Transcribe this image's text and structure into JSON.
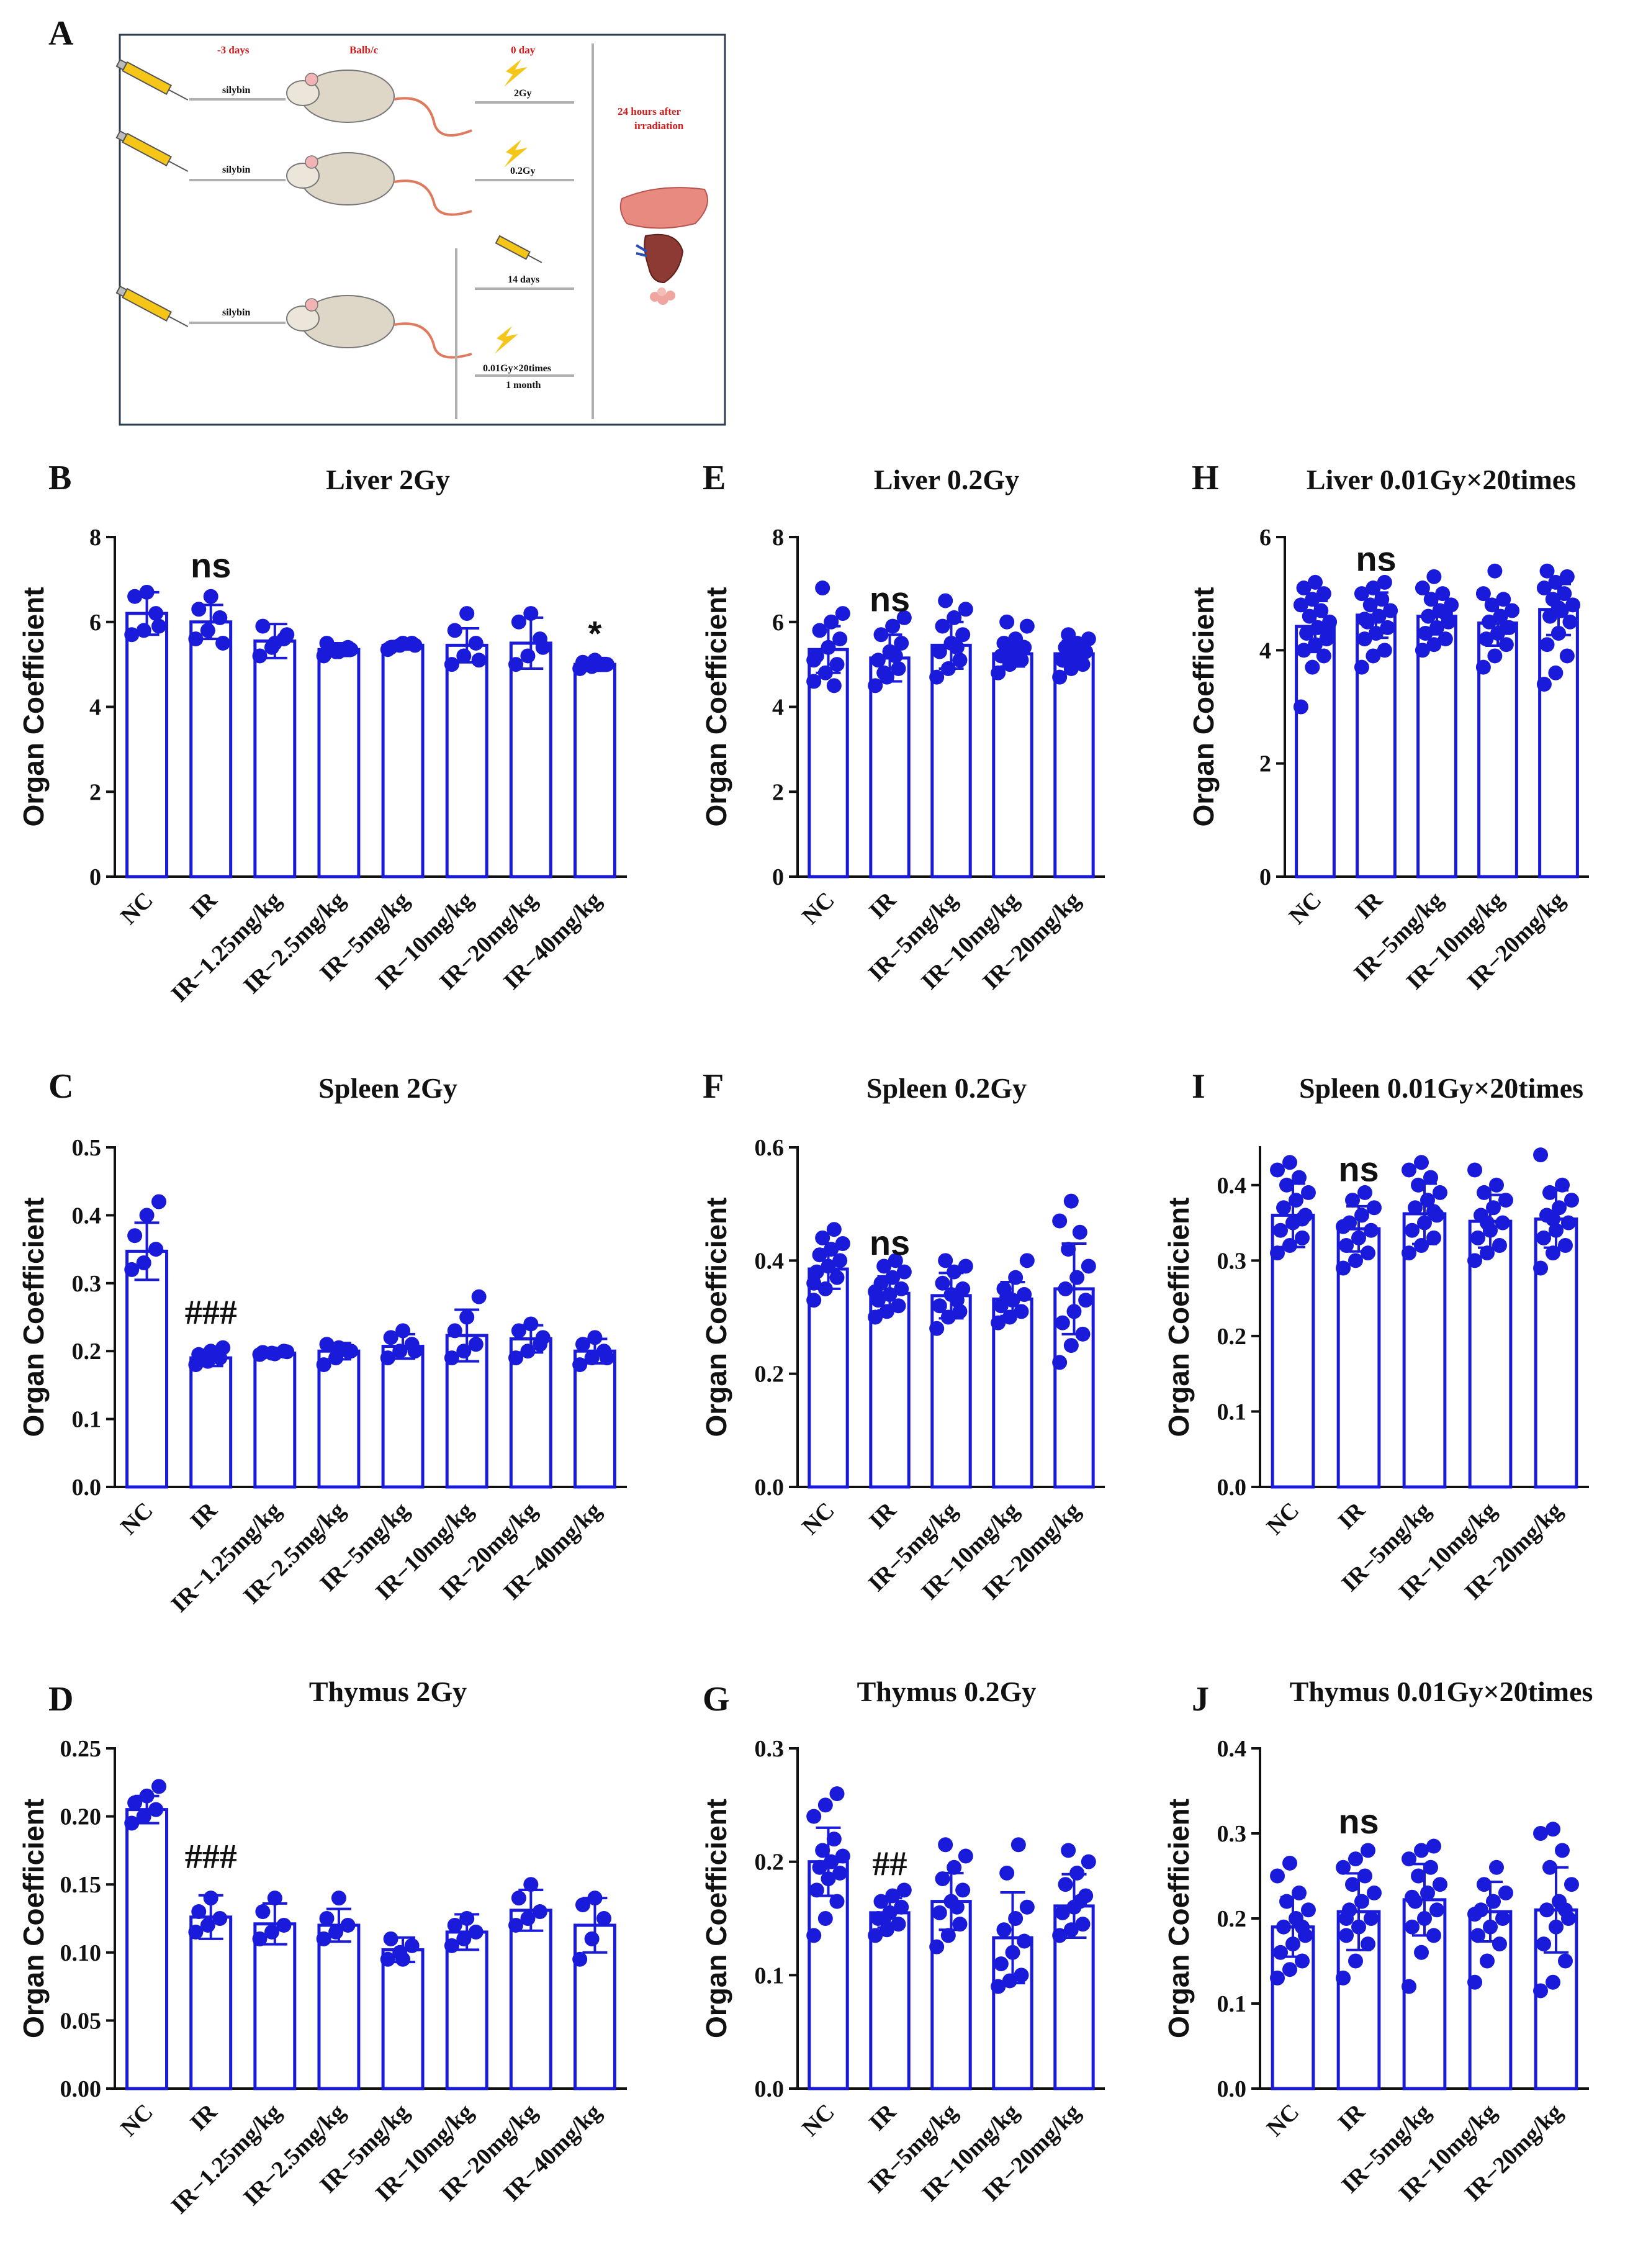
{
  "panel_a": {
    "label": "A",
    "texts": {
      "minus3days": "-3 days",
      "strain": "Balb/c",
      "day0": "0 day",
      "silybin": "silybin",
      "dose_2gy": "2Gy",
      "dose_02gy": "0.2Gy",
      "days14": "14 days",
      "dose_low": "0.01Gy×20times",
      "month": "1 month",
      "after_line1": "24 hours after",
      "after_line2": "irradiation"
    }
  },
  "colors": {
    "bar": "#1a1adb",
    "axis": "#111111",
    "red": "#d11a1a"
  },
  "chart_data": [
    {
      "id": "B",
      "label": "B",
      "type": "bar",
      "title": "Liver 2Gy",
      "ylabel": "Organ Coefficient",
      "ylim": [
        0,
        8
      ],
      "yticks": [
        "0",
        "2",
        "4",
        "6",
        "8"
      ],
      "ytick_values": [
        0,
        2,
        4,
        6,
        8
      ],
      "categories": [
        "NC",
        "IR",
        "IR−1.25mg/kg",
        "IR−2.5mg/kg",
        "IR−5mg/kg",
        "IR−10mg/kg",
        "IR−20mg/kg",
        "IR−40mg/kg"
      ],
      "values": [
        6.2,
        6.0,
        5.55,
        5.35,
        5.45,
        5.45,
        5.5,
        5.0
      ],
      "errors": [
        0.5,
        0.4,
        0.4,
        0.15,
        0.1,
        0.4,
        0.6,
        0.15
      ],
      "points": [
        [
          5.7,
          5.8,
          6.2,
          6.6,
          6.7,
          5.9
        ],
        [
          5.6,
          5.8,
          6.1,
          6.3,
          6.6,
          5.5
        ],
        [
          5.2,
          5.4,
          5.6,
          5.9,
          5.5,
          5.7
        ],
        [
          5.2,
          5.3,
          5.4,
          5.5,
          5.3,
          5.35
        ],
        [
          5.35,
          5.45,
          5.5,
          5.4,
          5.5,
          5.45
        ],
        [
          5.0,
          5.2,
          5.5,
          5.8,
          6.2,
          5.1
        ],
        [
          5.0,
          5.2,
          5.6,
          6.0,
          6.2,
          5.4
        ],
        [
          4.9,
          4.95,
          5.0,
          5.05,
          5.1,
          5.0
        ]
      ],
      "annotations": [
        {
          "text": "ns",
          "index": 1,
          "y": 7.05,
          "style": "sig"
        },
        {
          "text": "*",
          "index": 7,
          "y": 5.45,
          "style": "sig"
        }
      ]
    },
    {
      "id": "C",
      "label": "C",
      "type": "bar",
      "title": "Spleen 2Gy",
      "ylabel": "Organ Coefficient",
      "ylim": [
        0,
        0.5
      ],
      "yticks": [
        "0.0",
        "0.1",
        "0.2",
        "0.3",
        "0.4",
        "0.5"
      ],
      "ytick_values": [
        0,
        0.1,
        0.2,
        0.3,
        0.4,
        0.5
      ],
      "categories": [
        "NC",
        "IR",
        "IR−1.25mg/kg",
        "IR−2.5mg/kg",
        "IR−5mg/kg",
        "IR−10mg/kg",
        "IR−20mg/kg",
        "IR−40mg/kg"
      ],
      "values": [
        0.347,
        0.19,
        0.197,
        0.2,
        0.207,
        0.223,
        0.218,
        0.2
      ],
      "errors": [
        0.042,
        0.012,
        0.005,
        0.012,
        0.018,
        0.038,
        0.02,
        0.018
      ],
      "points": [
        [
          0.32,
          0.33,
          0.35,
          0.37,
          0.4,
          0.42
        ],
        [
          0.18,
          0.185,
          0.19,
          0.195,
          0.2,
          0.205
        ],
        [
          0.195,
          0.197,
          0.2,
          0.198,
          0.196,
          0.199
        ],
        [
          0.18,
          0.19,
          0.2,
          0.21,
          0.205,
          0.2
        ],
        [
          0.19,
          0.2,
          0.21,
          0.22,
          0.23,
          0.2
        ],
        [
          0.19,
          0.2,
          0.21,
          0.23,
          0.25,
          0.28
        ],
        [
          0.19,
          0.2,
          0.21,
          0.23,
          0.24,
          0.22
        ],
        [
          0.18,
          0.19,
          0.2,
          0.21,
          0.22,
          0.19
        ]
      ],
      "annotations": [
        {
          "text": "###",
          "index": 1,
          "y": 0.24,
          "style": "hash"
        }
      ]
    },
    {
      "id": "D",
      "label": "D",
      "type": "bar",
      "title": "Thymus 2Gy",
      "ylabel": "Organ Coefficient",
      "ylim": [
        0,
        0.25
      ],
      "yticks": [
        "0.00",
        "0.05",
        "0.10",
        "0.15",
        "0.20",
        "0.25"
      ],
      "ytick_values": [
        0,
        0.05,
        0.1,
        0.15,
        0.2,
        0.25
      ],
      "categories": [
        "NC",
        "IR",
        "IR−1.25mg/kg",
        "IR−2.5mg/kg",
        "IR−5mg/kg",
        "IR−10mg/kg",
        "IR−20mg/kg",
        "IR−40mg/kg"
      ],
      "values": [
        0.205,
        0.126,
        0.121,
        0.12,
        0.102,
        0.115,
        0.131,
        0.12
      ],
      "errors": [
        0.01,
        0.016,
        0.015,
        0.012,
        0.009,
        0.013,
        0.015,
        0.02
      ],
      "points": [
        [
          0.195,
          0.2,
          0.205,
          0.21,
          0.215,
          0.222
        ],
        [
          0.115,
          0.12,
          0.125,
          0.13,
          0.14
        ],
        [
          0.11,
          0.115,
          0.12,
          0.13,
          0.14
        ],
        [
          0.11,
          0.115,
          0.12,
          0.125,
          0.14
        ],
        [
          0.095,
          0.1,
          0.105,
          0.11,
          0.095
        ],
        [
          0.105,
          0.11,
          0.115,
          0.12,
          0.125
        ],
        [
          0.12,
          0.125,
          0.13,
          0.14,
          0.15
        ],
        [
          0.095,
          0.11,
          0.125,
          0.135,
          0.14
        ]
      ],
      "annotations": [
        {
          "text": "###",
          "index": 1,
          "y": 0.162,
          "style": "hash"
        }
      ]
    },
    {
      "id": "E",
      "label": "E",
      "type": "bar",
      "title": "Liver 0.2Gy",
      "ylabel": "Organ Coefficient",
      "ylim": [
        0,
        8
      ],
      "yticks": [
        "0",
        "2",
        "4",
        "6",
        "8"
      ],
      "ytick_values": [
        0,
        2,
        4,
        6,
        8
      ],
      "categories": [
        "NC",
        "IR",
        "IR−5mg/kg",
        "IR−10mg/kg",
        "IR−20mg/kg"
      ],
      "values": [
        5.35,
        5.15,
        5.45,
        5.25,
        5.25
      ],
      "errors": [
        0.55,
        0.55,
        0.55,
        0.3,
        0.3
      ],
      "points": [
        [
          4.6,
          4.8,
          5.0,
          5.2,
          5.4,
          5.6,
          5.8,
          6.0,
          6.2,
          6.8,
          4.5,
          5.1
        ],
        [
          4.5,
          4.7,
          4.9,
          5.1,
          5.3,
          5.5,
          5.7,
          5.9,
          6.1,
          4.8,
          5.2
        ],
        [
          4.7,
          4.9,
          5.1,
          5.3,
          5.5,
          5.7,
          5.9,
          6.1,
          6.3,
          6.5,
          5.4
        ],
        [
          4.8,
          5.0,
          5.1,
          5.2,
          5.3,
          5.4,
          5.5,
          5.6,
          5.9,
          6.0,
          5.25
        ],
        [
          4.7,
          4.9,
          5.0,
          5.1,
          5.2,
          5.3,
          5.4,
          5.5,
          5.6,
          5.7,
          5.25
        ]
      ],
      "annotations": [
        {
          "text": "ns",
          "index": 1,
          "y": 6.25,
          "style": "sig"
        }
      ]
    },
    {
      "id": "F",
      "label": "F",
      "type": "bar",
      "title": "Spleen 0.2Gy",
      "ylabel": "Organ Coefficient",
      "ylim": [
        0,
        0.6
      ],
      "yticks": [
        "0.0",
        "0.2",
        "0.4",
        "0.6"
      ],
      "ytick_values": [
        0,
        0.2,
        0.4,
        0.6
      ],
      "categories": [
        "NC",
        "IR",
        "IR−5mg/kg",
        "IR−10mg/kg",
        "IR−20mg/kg"
      ],
      "values": [
        0.385,
        0.342,
        0.338,
        0.332,
        0.35
      ],
      "errors": [
        0.035,
        0.03,
        0.04,
        0.03,
        0.08
      ],
      "points": [
        [
          0.33,
          0.35,
          0.37,
          0.38,
          0.39,
          0.4,
          0.41,
          0.42,
          0.43,
          0.44,
          0.455,
          0.36
        ],
        [
          0.3,
          0.31,
          0.32,
          0.33,
          0.34,
          0.35,
          0.36,
          0.37,
          0.38,
          0.39,
          0.4,
          0.345
        ],
        [
          0.28,
          0.3,
          0.31,
          0.32,
          0.34,
          0.35,
          0.36,
          0.38,
          0.39,
          0.4,
          0.33
        ],
        [
          0.29,
          0.3,
          0.31,
          0.32,
          0.33,
          0.34,
          0.35,
          0.37,
          0.4,
          0.335
        ],
        [
          0.22,
          0.25,
          0.27,
          0.29,
          0.31,
          0.33,
          0.35,
          0.37,
          0.39,
          0.42,
          0.45,
          0.47,
          0.505
        ]
      ],
      "annotations": [
        {
          "text": "ns",
          "index": 1,
          "y": 0.41,
          "style": "sig"
        }
      ]
    },
    {
      "id": "G",
      "label": "G",
      "type": "bar",
      "title": "Thymus 0.2Gy",
      "ylabel": "Organ Coefficient",
      "ylim": [
        0,
        0.3
      ],
      "yticks": [
        "0.0",
        "0.1",
        "0.2",
        "0.3"
      ],
      "ytick_values": [
        0,
        0.1,
        0.2,
        0.3
      ],
      "categories": [
        "NC",
        "IR",
        "IR−5mg/kg",
        "IR−10mg/kg",
        "IR−20mg/kg"
      ],
      "values": [
        0.2,
        0.155,
        0.165,
        0.133,
        0.161
      ],
      "errors": [
        0.03,
        0.013,
        0.025,
        0.04,
        0.028
      ],
      "points": [
        [
          0.135,
          0.15,
          0.165,
          0.175,
          0.185,
          0.19,
          0.195,
          0.2,
          0.205,
          0.21,
          0.22,
          0.24,
          0.25,
          0.26
        ],
        [
          0.135,
          0.14,
          0.145,
          0.15,
          0.155,
          0.16,
          0.165,
          0.17,
          0.175,
          0.15
        ],
        [
          0.125,
          0.135,
          0.145,
          0.155,
          0.165,
          0.175,
          0.185,
          0.195,
          0.205,
          0.215,
          0.16
        ],
        [
          0.09,
          0.095,
          0.1,
          0.11,
          0.12,
          0.13,
          0.14,
          0.15,
          0.16,
          0.19,
          0.215
        ],
        [
          0.135,
          0.14,
          0.145,
          0.155,
          0.16,
          0.17,
          0.18,
          0.19,
          0.2,
          0.21,
          0.165
        ]
      ],
      "annotations": [
        {
          "text": "##",
          "index": 1,
          "y": 0.188,
          "style": "hash"
        }
      ]
    },
    {
      "id": "H",
      "label": "H",
      "type": "bar",
      "title": "Liver 0.01Gy×20times",
      "ylabel": "Organ Coefficient",
      "ylim": [
        0,
        6
      ],
      "yticks": [
        "0",
        "2",
        "4",
        "6"
      ],
      "ytick_values": [
        0,
        2,
        4,
        6
      ],
      "categories": [
        "NC",
        "IR",
        "IR−5mg/kg",
        "IR−10mg/kg",
        "IR−20mg/kg"
      ],
      "values": [
        4.42,
        4.62,
        4.6,
        4.48,
        4.72
      ],
      "errors": [
        0.45,
        0.4,
        0.32,
        0.4,
        0.45
      ],
      "points": [
        [
          3.0,
          3.7,
          3.9,
          4.0,
          4.1,
          4.2,
          4.3,
          4.4,
          4.5,
          4.6,
          4.7,
          4.8,
          4.9,
          5.0,
          5.1,
          5.2,
          4.35
        ],
        [
          3.7,
          3.9,
          4.0,
          4.2,
          4.3,
          4.4,
          4.5,
          4.6,
          4.7,
          4.8,
          4.9,
          5.0,
          5.1,
          5.2,
          4.55
        ],
        [
          4.0,
          4.1,
          4.2,
          4.3,
          4.4,
          4.5,
          4.6,
          4.7,
          4.8,
          4.9,
          5.0,
          5.1,
          5.3,
          4.65
        ],
        [
          3.7,
          3.9,
          4.1,
          4.2,
          4.3,
          4.4,
          4.5,
          4.6,
          4.7,
          4.8,
          4.9,
          5.0,
          5.4,
          4.4
        ],
        [
          3.4,
          3.6,
          3.9,
          4.1,
          4.3,
          4.5,
          4.6,
          4.7,
          4.8,
          4.9,
          5.0,
          5.1,
          5.2,
          5.3,
          5.4,
          4.75
        ]
      ],
      "annotations": [
        {
          "text": "ns",
          "index": 1,
          "y": 5.4,
          "style": "sig"
        }
      ]
    },
    {
      "id": "I",
      "label": "I",
      "type": "bar",
      "title": "Spleen 0.01Gy×20times",
      "ylabel": "Organ Coefficient",
      "ylim": [
        0,
        0.45
      ],
      "yticks": [
        "0.0",
        "0.1",
        "0.2",
        "0.3",
        "0.4"
      ],
      "ytick_values": [
        0,
        0.1,
        0.2,
        0.3,
        0.4
      ],
      "categories": [
        "NC",
        "IR",
        "IR−5mg/kg",
        "IR−10mg/kg",
        "IR−20mg/kg"
      ],
      "values": [
        0.36,
        0.342,
        0.362,
        0.352,
        0.355
      ],
      "errors": [
        0.042,
        0.03,
        0.04,
        0.035,
        0.038
      ],
      "points": [
        [
          0.31,
          0.32,
          0.33,
          0.34,
          0.35,
          0.36,
          0.37,
          0.38,
          0.39,
          0.4,
          0.41,
          0.42,
          0.43,
          0.355
        ],
        [
          0.29,
          0.3,
          0.31,
          0.32,
          0.33,
          0.34,
          0.35,
          0.36,
          0.37,
          0.38,
          0.39,
          0.345
        ],
        [
          0.31,
          0.32,
          0.33,
          0.34,
          0.35,
          0.36,
          0.37,
          0.38,
          0.39,
          0.4,
          0.41,
          0.42,
          0.43,
          0.365
        ],
        [
          0.3,
          0.31,
          0.32,
          0.33,
          0.34,
          0.35,
          0.36,
          0.37,
          0.38,
          0.39,
          0.4,
          0.42,
          0.35
        ],
        [
          0.29,
          0.31,
          0.32,
          0.33,
          0.34,
          0.35,
          0.36,
          0.37,
          0.38,
          0.39,
          0.4,
          0.44,
          0.355
        ]
      ],
      "annotations": [
        {
          "text": "ns",
          "index": 1,
          "y": 0.405,
          "style": "sig"
        }
      ]
    },
    {
      "id": "J",
      "label": "J",
      "type": "bar",
      "title": "Thymus 0.01Gy×20times",
      "ylabel": "Organ Coefficient",
      "ylim": [
        0,
        0.4
      ],
      "yticks": [
        "0.0",
        "0.1",
        "0.2",
        "0.3",
        "0.4"
      ],
      "ytick_values": [
        0,
        0.1,
        0.2,
        0.3,
        0.4
      ],
      "categories": [
        "NC",
        "IR",
        "IR−5mg/kg",
        "IR−10mg/kg",
        "IR−20mg/kg"
      ],
      "values": [
        0.19,
        0.208,
        0.222,
        0.208,
        0.21
      ],
      "errors": [
        0.035,
        0.045,
        0.042,
        0.035,
        0.05
      ],
      "points": [
        [
          0.13,
          0.14,
          0.15,
          0.16,
          0.17,
          0.18,
          0.19,
          0.2,
          0.21,
          0.22,
          0.23,
          0.25,
          0.265,
          0.19
        ],
        [
          0.13,
          0.15,
          0.17,
          0.18,
          0.19,
          0.2,
          0.21,
          0.22,
          0.23,
          0.24,
          0.25,
          0.26,
          0.27,
          0.28,
          0.2
        ],
        [
          0.12,
          0.16,
          0.18,
          0.19,
          0.2,
          0.21,
          0.22,
          0.23,
          0.24,
          0.25,
          0.26,
          0.27,
          0.28,
          0.285,
          0.225
        ],
        [
          0.125,
          0.15,
          0.17,
          0.18,
          0.19,
          0.2,
          0.21,
          0.22,
          0.23,
          0.24,
          0.26,
          0.205
        ],
        [
          0.115,
          0.125,
          0.15,
          0.17,
          0.19,
          0.2,
          0.21,
          0.22,
          0.24,
          0.26,
          0.28,
          0.3,
          0.305,
          0.21
        ]
      ],
      "annotations": [
        {
          "text": "ns",
          "index": 1,
          "y": 0.3,
          "style": "sig"
        }
      ]
    }
  ]
}
